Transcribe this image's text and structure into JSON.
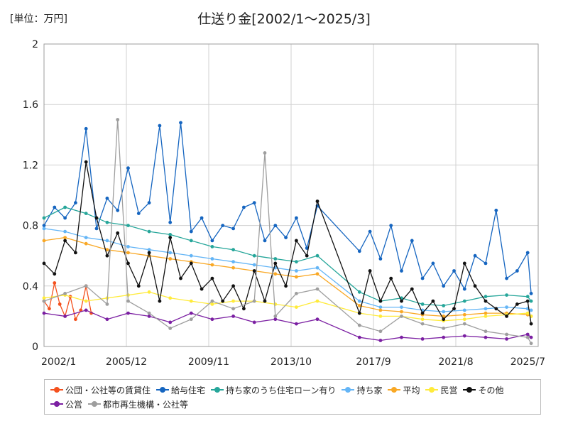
{
  "chart_data": {
    "type": "line",
    "title": "仕送り金[2002/1～2025/3]",
    "unit_label": "[単位：万円]",
    "xlabel": "",
    "ylabel": "",
    "ylim": [
      0,
      2
    ],
    "y_ticks": [
      "0",
      "0.4",
      "0.8",
      "1.2",
      "1.6",
      "2"
    ],
    "x_ticks": [
      "2002/1",
      "2005/12",
      "2009/11",
      "2013/10",
      "2017/9",
      "2021/8",
      "2025/7"
    ],
    "x_range": [
      "2002/1",
      "2025/7"
    ],
    "grid": true,
    "legend_position": "bottom",
    "gap_after": "2015/1",
    "gap_until": "2017/1",
    "series": [
      {
        "name": "公団・公社等の賃貸住",
        "color": "#f4511e",
        "x": [
          "2002/1",
          "2002/4",
          "2002/7",
          "2002/10",
          "2003/1",
          "2003/4",
          "2003/7",
          "2003/10",
          "2004/1",
          "2004/4"
        ],
        "y": [
          0.3,
          0.25,
          0.42,
          0.28,
          0.2,
          0.33,
          0.18,
          0.24,
          0.4,
          0.22
        ]
      },
      {
        "name": "給与住宅",
        "color": "#1565c0",
        "x": [
          "2002/1",
          "2002/7",
          "2003/1",
          "2003/7",
          "2004/1",
          "2004/7",
          "2005/1",
          "2005/7",
          "2006/1",
          "2006/7",
          "2007/1",
          "2007/7",
          "2008/1",
          "2008/7",
          "2009/1",
          "2009/7",
          "2010/1",
          "2010/7",
          "2011/1",
          "2011/7",
          "2012/1",
          "2012/7",
          "2013/1",
          "2013/7",
          "2014/1",
          "2014/7",
          "2015/1",
          "2017/1",
          "2017/7",
          "2018/1",
          "2018/7",
          "2019/1",
          "2019/7",
          "2020/1",
          "2020/7",
          "2021/1",
          "2021/7",
          "2022/1",
          "2022/7",
          "2023/1",
          "2023/7",
          "2024/1",
          "2024/7",
          "2025/1",
          "2025/3"
        ],
        "y": [
          0.8,
          0.92,
          0.85,
          0.95,
          1.44,
          0.78,
          0.98,
          0.9,
          1.18,
          0.88,
          0.95,
          1.46,
          0.82,
          1.48,
          0.76,
          0.85,
          0.7,
          0.8,
          0.78,
          0.92,
          0.95,
          0.7,
          0.8,
          0.72,
          0.85,
          0.65,
          0.93,
          0.63,
          0.76,
          0.58,
          0.8,
          0.5,
          0.7,
          0.45,
          0.55,
          0.4,
          0.5,
          0.38,
          0.6,
          0.55,
          0.9,
          0.45,
          0.5,
          0.62,
          0.35
        ]
      },
      {
        "name": "持ち家のうち住宅ローン有り",
        "color": "#26a69a",
        "x": [
          "2002/1",
          "2003/1",
          "2004/1",
          "2005/1",
          "2006/1",
          "2007/1",
          "2008/1",
          "2009/1",
          "2010/1",
          "2011/1",
          "2012/1",
          "2013/1",
          "2014/1",
          "2015/1",
          "2017/1",
          "2018/1",
          "2019/1",
          "2020/1",
          "2021/1",
          "2022/1",
          "2023/1",
          "2024/1",
          "2025/1",
          "2025/3"
        ],
        "y": [
          0.85,
          0.92,
          0.88,
          0.82,
          0.8,
          0.76,
          0.74,
          0.7,
          0.66,
          0.64,
          0.6,
          0.58,
          0.56,
          0.6,
          0.36,
          0.3,
          0.32,
          0.28,
          0.27,
          0.3,
          0.33,
          0.34,
          0.33,
          0.3
        ]
      },
      {
        "name": "持ち家",
        "color": "#64b5f6",
        "x": [
          "2002/1",
          "2003/1",
          "2004/1",
          "2005/1",
          "2006/1",
          "2007/1",
          "2008/1",
          "2009/1",
          "2010/1",
          "2011/1",
          "2012/1",
          "2013/1",
          "2014/1",
          "2015/1",
          "2017/1",
          "2018/1",
          "2019/1",
          "2020/1",
          "2021/1",
          "2022/1",
          "2023/1",
          "2024/1",
          "2025/1",
          "2025/3"
        ],
        "y": [
          0.78,
          0.76,
          0.72,
          0.7,
          0.66,
          0.64,
          0.62,
          0.6,
          0.58,
          0.56,
          0.54,
          0.52,
          0.5,
          0.52,
          0.3,
          0.26,
          0.26,
          0.24,
          0.23,
          0.24,
          0.25,
          0.26,
          0.25,
          0.24
        ]
      },
      {
        "name": "平均",
        "color": "#f9a825",
        "x": [
          "2002/1",
          "2003/1",
          "2004/1",
          "2005/1",
          "2006/1",
          "2007/1",
          "2008/1",
          "2009/1",
          "2010/1",
          "2011/1",
          "2012/1",
          "2013/1",
          "2014/1",
          "2015/1",
          "2017/1",
          "2018/1",
          "2019/1",
          "2020/1",
          "2021/1",
          "2022/1",
          "2023/1",
          "2024/1",
          "2025/1",
          "2025/3"
        ],
        "y": [
          0.7,
          0.72,
          0.68,
          0.64,
          0.62,
          0.6,
          0.58,
          0.56,
          0.54,
          0.52,
          0.5,
          0.48,
          0.46,
          0.48,
          0.27,
          0.24,
          0.23,
          0.21,
          0.2,
          0.21,
          0.22,
          0.22,
          0.21,
          0.2
        ]
      },
      {
        "name": "民営",
        "color": "#ffeb3b",
        "x": [
          "2002/1",
          "2003/1",
          "2004/1",
          "2005/1",
          "2006/1",
          "2007/1",
          "2008/1",
          "2009/1",
          "2010/1",
          "2011/1",
          "2012/1",
          "2013/1",
          "2014/1",
          "2015/1",
          "2017/1",
          "2018/1",
          "2019/1",
          "2020/1",
          "2021/1",
          "2022/1",
          "2023/1",
          "2024/1",
          "2025/1",
          "2025/3"
        ],
        "y": [
          0.32,
          0.34,
          0.3,
          0.32,
          0.34,
          0.36,
          0.32,
          0.3,
          0.28,
          0.3,
          0.3,
          0.28,
          0.26,
          0.3,
          0.22,
          0.2,
          0.2,
          0.18,
          0.17,
          0.18,
          0.2,
          0.21,
          0.22,
          0.2
        ]
      },
      {
        "name": "その他",
        "color": "#111111",
        "x": [
          "2002/1",
          "2002/7",
          "2003/1",
          "2003/7",
          "2004/1",
          "2004/7",
          "2005/1",
          "2005/7",
          "2006/1",
          "2006/7",
          "2007/1",
          "2007/7",
          "2008/1",
          "2008/7",
          "2009/1",
          "2009/7",
          "2010/1",
          "2010/7",
          "2011/1",
          "2011/7",
          "2012/1",
          "2012/7",
          "2013/1",
          "2013/7",
          "2014/1",
          "2014/7",
          "2015/1",
          "2017/1",
          "2017/7",
          "2018/1",
          "2018/7",
          "2019/1",
          "2019/7",
          "2020/1",
          "2020/7",
          "2021/1",
          "2021/7",
          "2022/1",
          "2022/7",
          "2023/1",
          "2023/7",
          "2024/1",
          "2024/7",
          "2025/1",
          "2025/3"
        ],
        "y": [
          0.55,
          0.48,
          0.7,
          0.62,
          1.22,
          0.85,
          0.6,
          0.75,
          0.55,
          0.4,
          0.62,
          0.3,
          0.72,
          0.45,
          0.55,
          0.38,
          0.45,
          0.3,
          0.4,
          0.25,
          0.5,
          0.3,
          0.55,
          0.4,
          0.7,
          0.6,
          0.96,
          0.22,
          0.5,
          0.3,
          0.45,
          0.3,
          0.38,
          0.22,
          0.3,
          0.18,
          0.25,
          0.55,
          0.4,
          0.3,
          0.25,
          0.2,
          0.28,
          0.3,
          0.15
        ]
      },
      {
        "name": "公営",
        "color": "#7b1fa2",
        "x": [
          "2002/1",
          "2003/1",
          "2004/1",
          "2005/1",
          "2006/1",
          "2007/1",
          "2008/1",
          "2009/1",
          "2010/1",
          "2011/1",
          "2012/1",
          "2013/1",
          "2014/1",
          "2015/1",
          "2017/1",
          "2018/1",
          "2019/1",
          "2020/1",
          "2021/1",
          "2022/1",
          "2023/1",
          "2024/1",
          "2025/1",
          "2025/3"
        ],
        "y": [
          0.22,
          0.2,
          0.24,
          0.18,
          0.22,
          0.2,
          0.16,
          0.22,
          0.18,
          0.2,
          0.16,
          0.18,
          0.15,
          0.18,
          0.06,
          0.04,
          0.06,
          0.05,
          0.06,
          0.07,
          0.06,
          0.05,
          0.08,
          0.06
        ]
      },
      {
        "name": "都市再生機構・公社等",
        "color": "#9e9e9e",
        "x": [
          "2002/1",
          "2003/1",
          "2004/1",
          "2005/1",
          "2005/7",
          "2006/1",
          "2007/1",
          "2008/1",
          "2009/1",
          "2010/1",
          "2011/1",
          "2012/1",
          "2012/7",
          "2013/1",
          "2014/1",
          "2015/1",
          "2017/1",
          "2018/1",
          "2019/1",
          "2020/1",
          "2021/1",
          "2022/1",
          "2023/1",
          "2024/1",
          "2025/1",
          "2025/3"
        ],
        "y": [
          0.3,
          0.35,
          0.4,
          0.28,
          1.5,
          0.3,
          0.22,
          0.12,
          0.18,
          0.3,
          0.25,
          0.3,
          1.28,
          0.2,
          0.35,
          0.38,
          0.14,
          0.1,
          0.2,
          0.15,
          0.12,
          0.15,
          0.1,
          0.08,
          0.06,
          0.02
        ]
      }
    ]
  }
}
